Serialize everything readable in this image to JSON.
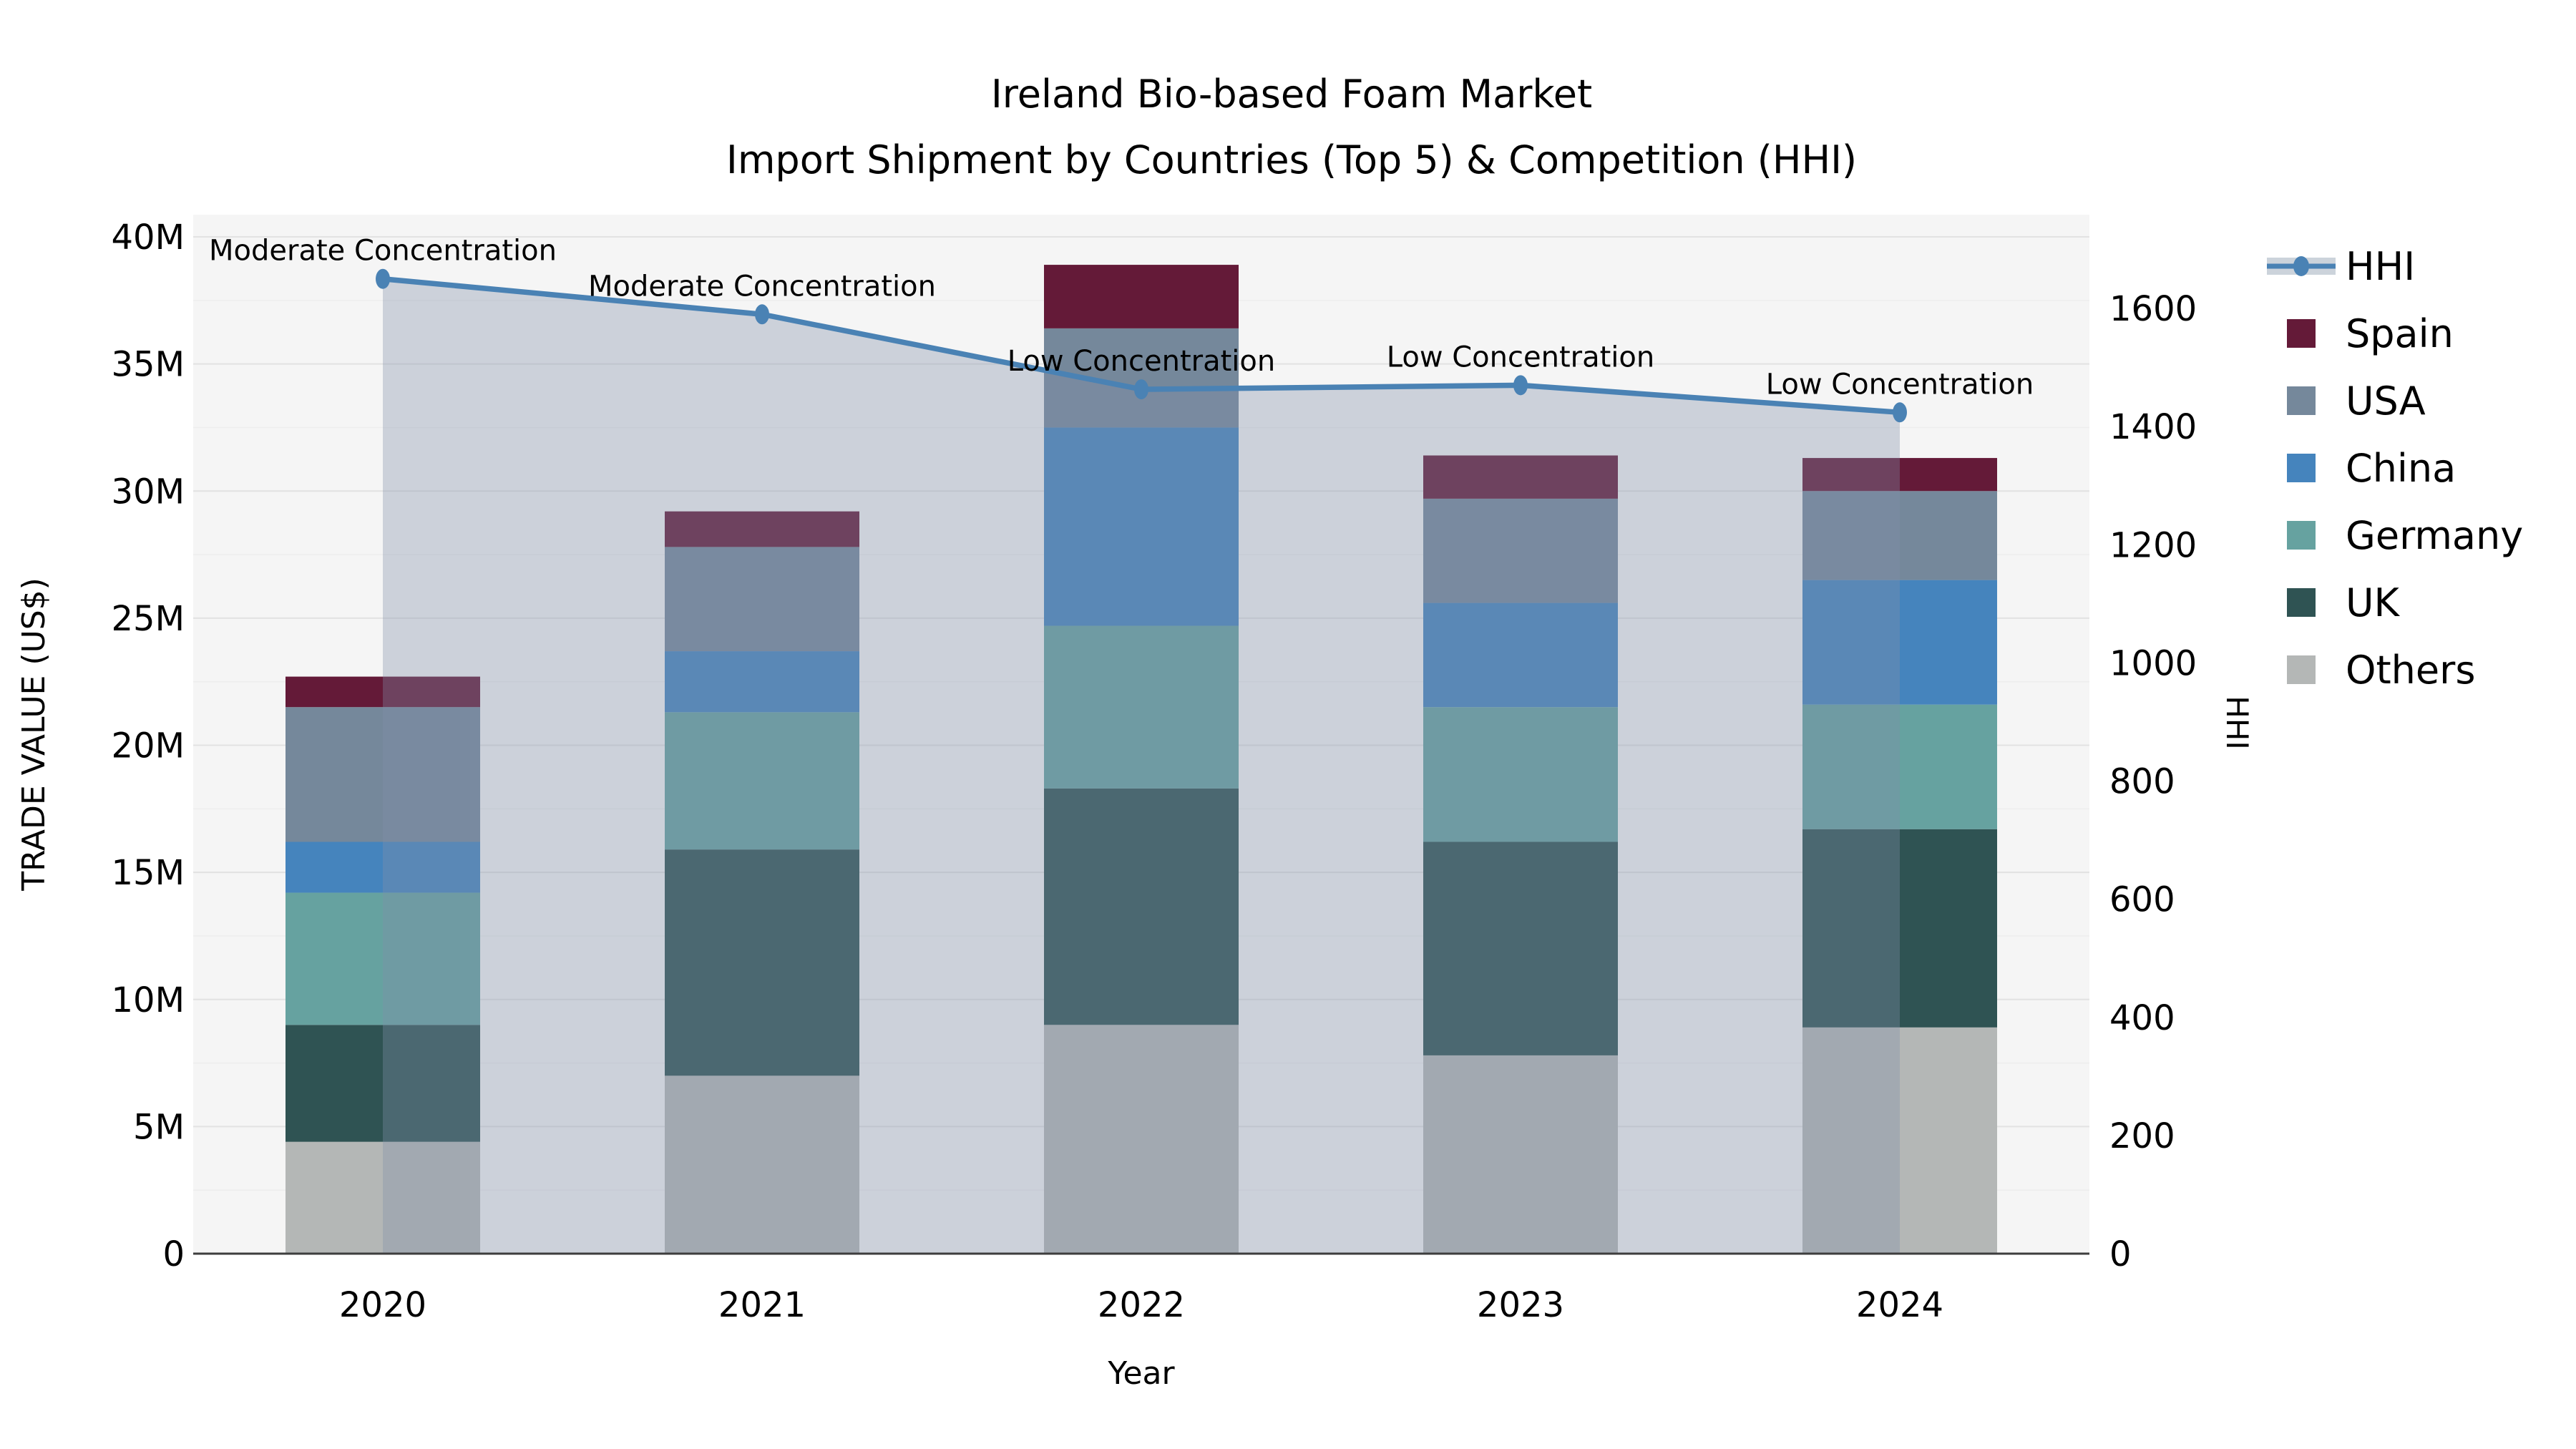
{
  "title": {
    "line1": "Ireland Bio-based Foam Market",
    "line2": "Import Shipment by Countries (Top 5) & Competition (HHI)"
  },
  "axes": {
    "x": {
      "label": "Year"
    },
    "y_left": {
      "label": "TRADE VALUE (US$)",
      "tick_labels": [
        "0",
        "5M",
        "10M",
        "15M",
        "20M",
        "25M",
        "30M",
        "35M",
        "40M"
      ],
      "tick_values_millions": [
        0,
        5,
        10,
        15,
        20,
        25,
        30,
        35,
        40
      ]
    },
    "y_right": {
      "label": "HHI",
      "tick_labels": [
        "0",
        "200",
        "400",
        "600",
        "800",
        "1000",
        "1200",
        "1400",
        "1600"
      ],
      "tick_values": [
        0,
        200,
        400,
        600,
        800,
        1000,
        1200,
        1400,
        1600
      ]
    }
  },
  "chart_data": {
    "type": "stacked-bar+line",
    "unit": "millions US$",
    "categories": [
      "2020",
      "2021",
      "2022",
      "2023",
      "2024"
    ],
    "series": [
      {
        "name": "Others",
        "color": "#b4b7b6",
        "values": [
          4.4,
          7.0,
          9.0,
          7.8,
          8.9
        ]
      },
      {
        "name": "UK",
        "color": "#2f5353",
        "values": [
          4.6,
          8.9,
          9.3,
          8.4,
          7.8
        ]
      },
      {
        "name": "Germany",
        "color": "#66a2a0",
        "values": [
          5.2,
          5.4,
          6.4,
          5.3,
          4.9
        ]
      },
      {
        "name": "China",
        "color": "#4584bd",
        "values": [
          2.0,
          2.4,
          7.8,
          4.1,
          4.9
        ]
      },
      {
        "name": "USA",
        "color": "#75889b",
        "values": [
          5.3,
          4.1,
          3.9,
          4.1,
          3.5
        ]
      },
      {
        "name": "Spain",
        "color": "#641a38",
        "values": [
          1.2,
          1.4,
          2.5,
          1.7,
          1.3
        ]
      }
    ],
    "line_series": {
      "name": "HHI",
      "color": "#4a82b4",
      "area_fill": "rgba(128,143,168,0.35)",
      "values": [
        1650,
        1590,
        1463,
        1470,
        1424
      ]
    },
    "annotations": [
      {
        "year": "2020",
        "text": "Moderate Concentration"
      },
      {
        "year": "2021",
        "text": "Moderate Concentration"
      },
      {
        "year": "2022",
        "text": "Low Concentration"
      },
      {
        "year": "2023",
        "text": "Low Concentration"
      },
      {
        "year": "2024",
        "text": "Low Concentration"
      }
    ],
    "ylim_left_millions": [
      0,
      40.85
    ],
    "ylim_right": [
      0,
      1634
    ],
    "grid": "horizontal",
    "legend_position": "right"
  },
  "legend": {
    "items": [
      {
        "label": "HHI",
        "type": "line",
        "color": "#4a82b4"
      },
      {
        "label": "Spain",
        "type": "swatch",
        "color": "#641a38"
      },
      {
        "label": "USA",
        "type": "swatch",
        "color": "#75889b"
      },
      {
        "label": "China",
        "type": "swatch",
        "color": "#4584bd"
      },
      {
        "label": "Germany",
        "type": "swatch",
        "color": "#66a2a0"
      },
      {
        "label": "UK",
        "type": "swatch",
        "color": "#2f5353"
      },
      {
        "label": "Others",
        "type": "swatch",
        "color": "#b4b7b6"
      }
    ]
  },
  "colors": {
    "figure_bg": "#ffffff",
    "plot_bg": "#f5f5f5",
    "grid_major": "#e2e2e2",
    "grid_minor": "#ededed",
    "axis_line": "#3d3d3d",
    "hhi_line": "#4a82b4",
    "hhi_area": "rgba(128,143,168,0.35)",
    "hhi_legend_band": "#ccd3db",
    "text": "#000000"
  }
}
